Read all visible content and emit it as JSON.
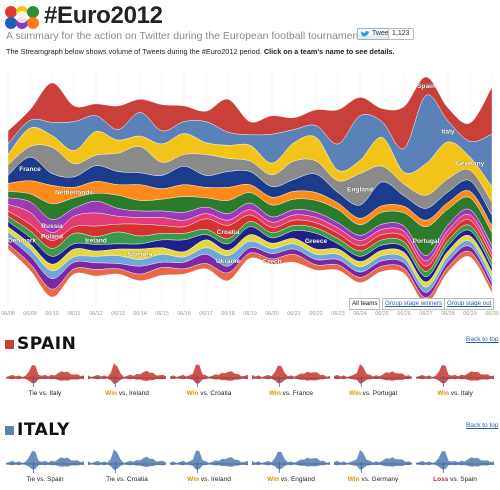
{
  "header": {
    "title": "#Euro2012",
    "subtitle": "A summary for the action on Twitter during the European football tournament.",
    "tweet_label": "Tweet",
    "tweet_count": "1,123",
    "intro": "The Streamgraph below shows volume of Tweets during the #Euro2012 period. ",
    "intro_bold": "Click on a team's name to see details."
  },
  "filters": [
    "All teams",
    "Group stage winners",
    "Group stage out"
  ],
  "back_to_top": "Back to top",
  "chart_data": {
    "type": "area",
    "title": "#Euro2012",
    "x": [
      "06/08",
      "06/09",
      "06/10",
      "06/11",
      "06/12",
      "06/13",
      "06/14",
      "06/15",
      "06/16",
      "06/17",
      "06/18",
      "06/19",
      "06/20",
      "06/21",
      "06/22",
      "06/23",
      "06/24",
      "06/25",
      "06/26",
      "06/27",
      "06/28",
      "06/29",
      "06/30"
    ],
    "series": [
      {
        "name": "Spain",
        "color": "#c9403a",
        "values": [
          10,
          8,
          30,
          12,
          9,
          18,
          10,
          20,
          12,
          8,
          25,
          10,
          14,
          9,
          12,
          26,
          14,
          10,
          32,
          14,
          10,
          14,
          36
        ]
      },
      {
        "name": "Italy",
        "color": "#5b82b8",
        "values": [
          8,
          6,
          10,
          22,
          12,
          8,
          18,
          10,
          9,
          16,
          10,
          8,
          22,
          10,
          9,
          20,
          34,
          12,
          18,
          52,
          16,
          12,
          40
        ]
      },
      {
        "name": "Germany",
        "color": "#f2c318",
        "values": [
          8,
          14,
          9,
          10,
          18,
          10,
          8,
          14,
          16,
          9,
          10,
          12,
          9,
          14,
          18,
          8,
          10,
          22,
          9,
          24,
          28,
          10,
          12
        ]
      },
      {
        "name": "England",
        "color": "#8a8a8a",
        "values": [
          8,
          8,
          20,
          10,
          8,
          14,
          20,
          10,
          9,
          16,
          10,
          8,
          9,
          14,
          10,
          9,
          24,
          12,
          9,
          10,
          10,
          8,
          10
        ]
      },
      {
        "name": "France",
        "color": "#1a3c8a",
        "values": [
          6,
          18,
          9,
          8,
          12,
          10,
          9,
          10,
          14,
          9,
          12,
          10,
          8,
          9,
          14,
          8,
          10,
          18,
          8,
          9,
          8,
          8,
          8
        ]
      },
      {
        "name": "Netherlands",
        "color": "#ff8a1a",
        "values": [
          6,
          10,
          14,
          8,
          9,
          8,
          12,
          8,
          9,
          8,
          10,
          6,
          6,
          6,
          6,
          5,
          5,
          5,
          5,
          5,
          5,
          5,
          5
        ]
      },
      {
        "name": "Portugal",
        "color": "#2c7a2c",
        "values": [
          5,
          6,
          12,
          8,
          6,
          10,
          8,
          9,
          12,
          7,
          10,
          8,
          9,
          8,
          9,
          10,
          8,
          9,
          10,
          22,
          12,
          9,
          10
        ]
      },
      {
        "name": "Russia",
        "color": "#9a3bb8",
        "values": [
          5,
          8,
          10,
          6,
          9,
          6,
          5,
          5,
          6,
          5,
          5,
          5,
          4,
          4,
          4,
          4,
          4,
          4,
          4,
          4,
          4,
          4,
          4
        ]
      },
      {
        "name": "Poland",
        "color": "#e23d76",
        "values": [
          5,
          9,
          6,
          8,
          10,
          6,
          5,
          6,
          5,
          4,
          4,
          4,
          4,
          4,
          4,
          4,
          4,
          4,
          4,
          4,
          4,
          4,
          4
        ]
      },
      {
        "name": "Croatia",
        "color": "#d6322e",
        "values": [
          4,
          5,
          6,
          5,
          8,
          6,
          9,
          6,
          5,
          8,
          10,
          5,
          4,
          4,
          4,
          4,
          4,
          4,
          4,
          4,
          4,
          4,
          4
        ]
      },
      {
        "name": "Ireland",
        "color": "#3a9a4a",
        "values": [
          4,
          5,
          6,
          8,
          6,
          9,
          6,
          5,
          5,
          4,
          4,
          4,
          4,
          4,
          4,
          4,
          4,
          4,
          4,
          4,
          4,
          4,
          4
        ]
      },
      {
        "name": "Greece",
        "color": "#20208a",
        "values": [
          4,
          5,
          6,
          4,
          5,
          4,
          4,
          6,
          9,
          4,
          5,
          6,
          4,
          6,
          12,
          4,
          4,
          4,
          4,
          4,
          4,
          4,
          4
        ]
      },
      {
        "name": "Sweden",
        "color": "#e6d640",
        "values": [
          4,
          4,
          5,
          6,
          4,
          5,
          8,
          5,
          4,
          6,
          4,
          5,
          4,
          4,
          4,
          4,
          4,
          4,
          4,
          4,
          4,
          4,
          4
        ]
      },
      {
        "name": "Ukraine",
        "color": "#6fa7d8",
        "values": [
          4,
          5,
          6,
          4,
          5,
          6,
          5,
          6,
          4,
          5,
          8,
          5,
          4,
          4,
          4,
          4,
          4,
          4,
          4,
          4,
          4,
          4,
          4
        ]
      },
      {
        "name": "Denmark",
        "color": "#7a28a6",
        "values": [
          5,
          6,
          8,
          5,
          5,
          4,
          6,
          4,
          5,
          7,
          5,
          4,
          4,
          4,
          4,
          4,
          4,
          4,
          4,
          4,
          4,
          4,
          4
        ]
      },
      {
        "name": "Czech",
        "color": "#e8684a",
        "values": [
          4,
          5,
          6,
          4,
          5,
          4,
          5,
          6,
          4,
          4,
          6,
          4,
          4,
          6,
          4,
          4,
          4,
          4,
          4,
          4,
          4,
          4,
          4
        ]
      }
    ],
    "labels": [
      {
        "team": "Netherlands",
        "x": "06/11"
      },
      {
        "team": "Russia",
        "x": "06/10"
      },
      {
        "team": "France",
        "x": "06/09"
      },
      {
        "team": "Ireland",
        "x": "06/12"
      },
      {
        "team": "Croatia",
        "x": "06/18"
      },
      {
        "team": "Czech",
        "x": "06/20"
      },
      {
        "team": "Portugal",
        "x": "06/27"
      },
      {
        "team": "Italy",
        "x": "06/28"
      },
      {
        "team": "Poland",
        "x": "06/10"
      },
      {
        "team": "Sweden",
        "x": "06/14"
      },
      {
        "team": "Ukraine",
        "x": "06/18"
      },
      {
        "team": "Greece",
        "x": "06/22"
      },
      {
        "team": "Spain",
        "x": "06/27"
      },
      {
        "team": "England",
        "x": "06/24"
      },
      {
        "team": "Denmark",
        "x": "06/08"
      },
      {
        "team": "Germany",
        "x": "06/29"
      }
    ]
  },
  "teams": [
    {
      "name": "SPAIN",
      "color": "#c9403a",
      "matches": [
        {
          "result": "Tie",
          "vs": "Italy"
        },
        {
          "result": "Win",
          "vs": "Ireland"
        },
        {
          "result": "Win",
          "vs": "Croatia"
        },
        {
          "result": "Win",
          "vs": "France"
        },
        {
          "result": "Win",
          "vs": "Portugal"
        },
        {
          "result": "Win",
          "vs": "Italy"
        }
      ]
    },
    {
      "name": "ITALY",
      "color": "#5b82b8",
      "matches": [
        {
          "result": "Tie",
          "vs": "Spain"
        },
        {
          "result": "Tie",
          "vs": "Croatia"
        },
        {
          "result": "Win",
          "vs": "Ireland"
        },
        {
          "result": "Win",
          "vs": "England"
        },
        {
          "result": "Win",
          "vs": "Germany"
        },
        {
          "result": "Loss",
          "vs": "Spain"
        }
      ]
    }
  ]
}
